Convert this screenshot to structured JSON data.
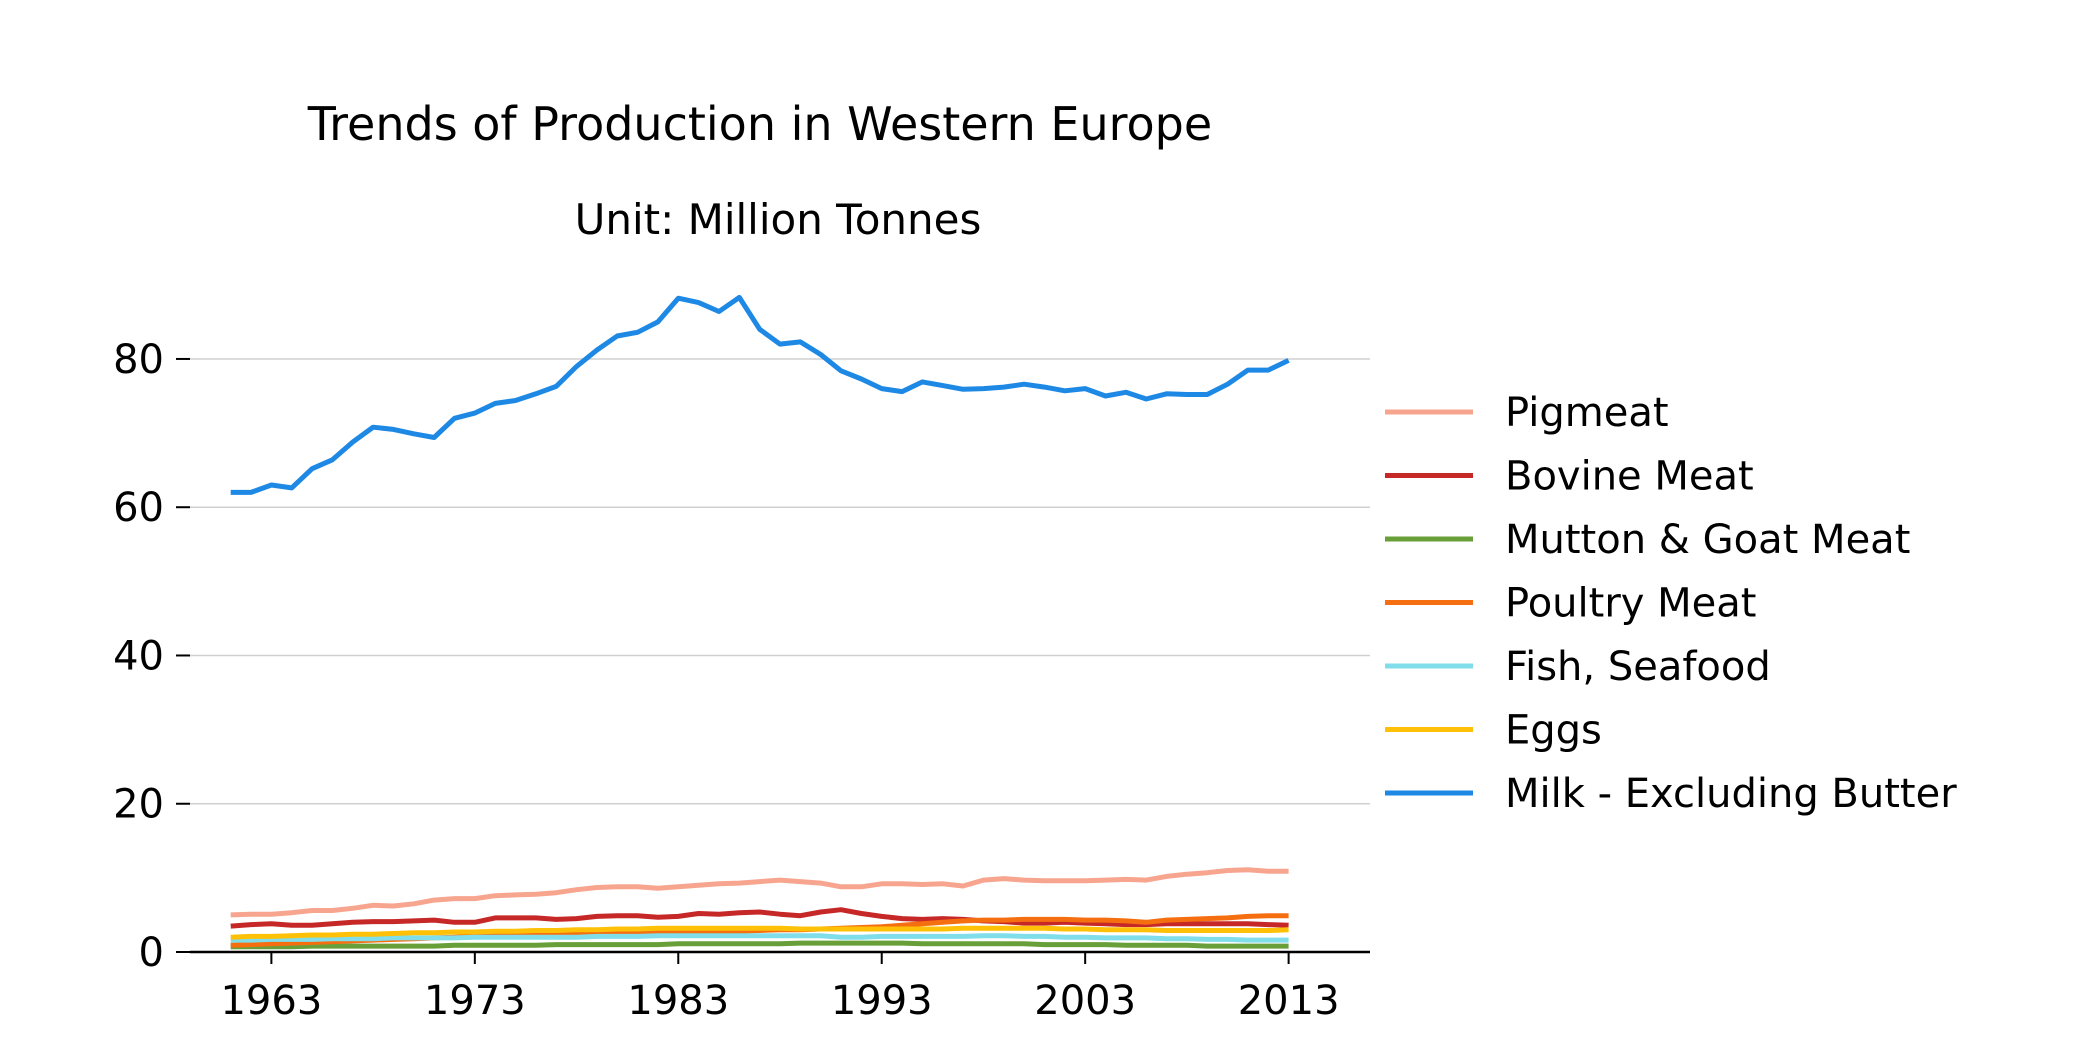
{
  "chart_data": {
    "type": "line",
    "title": "Trends of Production in Western Europe",
    "subtitle": "Unit: Million Tonnes",
    "xlabel": "",
    "ylabel": "",
    "xlim": [
      1959,
      2017
    ],
    "ylim": [
      0,
      92
    ],
    "x_ticks": [
      1963,
      1973,
      1983,
      1993,
      2003,
      2013
    ],
    "y_ticks": [
      0,
      20,
      40,
      60,
      80
    ],
    "grid": "horizontal",
    "legend_position": "right",
    "x": [
      1961,
      1962,
      1963,
      1964,
      1965,
      1966,
      1967,
      1968,
      1969,
      1970,
      1971,
      1972,
      1973,
      1974,
      1975,
      1976,
      1977,
      1978,
      1979,
      1980,
      1981,
      1982,
      1983,
      1984,
      1985,
      1986,
      1987,
      1988,
      1989,
      1990,
      1991,
      1992,
      1993,
      1994,
      1995,
      1996,
      1997,
      1998,
      1999,
      2000,
      2001,
      2002,
      2003,
      2004,
      2005,
      2006,
      2007,
      2008,
      2009,
      2010,
      2011,
      2012,
      2013
    ],
    "series": [
      {
        "name": "Pigmeat",
        "color": "#F7A58F",
        "values": [
          5.0,
          5.1,
          5.1,
          5.3,
          5.6,
          5.6,
          5.9,
          6.3,
          6.2,
          6.5,
          7.0,
          7.2,
          7.2,
          7.6,
          7.7,
          7.8,
          8.0,
          8.4,
          8.7,
          8.8,
          8.8,
          8.6,
          8.8,
          9.0,
          9.2,
          9.3,
          9.5,
          9.7,
          9.5,
          9.3,
          8.8,
          8.8,
          9.2,
          9.2,
          9.1,
          9.2,
          8.9,
          9.7,
          9.9,
          9.7,
          9.6,
          9.6,
          9.6,
          9.7,
          9.8,
          9.7,
          10.2,
          10.5,
          10.7,
          11.0,
          11.1,
          10.9,
          10.9
        ]
      },
      {
        "name": "Bovine Meat",
        "color": "#C62828",
        "values": [
          3.5,
          3.7,
          3.8,
          3.6,
          3.6,
          3.8,
          4.0,
          4.1,
          4.1,
          4.2,
          4.3,
          4.0,
          4.0,
          4.6,
          4.6,
          4.6,
          4.4,
          4.5,
          4.8,
          4.9,
          4.9,
          4.7,
          4.8,
          5.2,
          5.1,
          5.3,
          5.4,
          5.1,
          4.9,
          5.4,
          5.7,
          5.2,
          4.8,
          4.5,
          4.4,
          4.5,
          4.4,
          4.2,
          4.1,
          3.9,
          3.9,
          4.0,
          3.9,
          3.8,
          3.7,
          3.7,
          3.8,
          3.8,
          3.8,
          3.8,
          3.8,
          3.7,
          3.6
        ]
      },
      {
        "name": "Mutton & Goat Meat",
        "color": "#689F38",
        "values": [
          0.7,
          0.7,
          0.7,
          0.7,
          0.8,
          0.8,
          0.8,
          0.8,
          0.8,
          0.8,
          0.8,
          0.9,
          0.9,
          0.9,
          0.9,
          0.9,
          1.0,
          1.0,
          1.0,
          1.0,
          1.0,
          1.0,
          1.1,
          1.1,
          1.1,
          1.1,
          1.1,
          1.1,
          1.2,
          1.2,
          1.2,
          1.2,
          1.2,
          1.2,
          1.1,
          1.1,
          1.1,
          1.1,
          1.1,
          1.1,
          1.0,
          1.0,
          1.0,
          1.0,
          0.9,
          0.9,
          0.9,
          0.9,
          0.8,
          0.8,
          0.8,
          0.8,
          0.8
        ]
      },
      {
        "name": "Poultry Meat",
        "color": "#F56F11",
        "values": [
          0.9,
          1.0,
          1.1,
          1.2,
          1.3,
          1.4,
          1.5,
          1.6,
          1.7,
          1.8,
          1.9,
          2.0,
          2.1,
          2.2,
          2.2,
          2.3,
          2.4,
          2.5,
          2.6,
          2.6,
          2.7,
          2.7,
          2.7,
          2.8,
          2.8,
          2.8,
          2.9,
          3.0,
          3.0,
          3.1,
          3.2,
          3.3,
          3.4,
          3.6,
          3.8,
          4.0,
          4.2,
          4.3,
          4.3,
          4.4,
          4.4,
          4.4,
          4.3,
          4.3,
          4.2,
          4.0,
          4.3,
          4.4,
          4.5,
          4.6,
          4.8,
          4.9,
          4.9
        ]
      },
      {
        "name": "Fish, Seafood",
        "color": "#80DEEA",
        "values": [
          1.6,
          1.6,
          1.7,
          1.7,
          1.7,
          1.8,
          1.8,
          1.8,
          1.9,
          1.9,
          1.9,
          1.9,
          2.0,
          2.0,
          2.0,
          2.0,
          2.0,
          2.0,
          2.1,
          2.1,
          2.1,
          2.2,
          2.2,
          2.2,
          2.2,
          2.2,
          2.2,
          2.2,
          2.2,
          2.2,
          2.0,
          2.0,
          2.1,
          2.1,
          2.1,
          2.1,
          2.1,
          2.2,
          2.2,
          2.1,
          2.1,
          2.0,
          2.0,
          1.9,
          1.9,
          1.9,
          1.8,
          1.8,
          1.7,
          1.7,
          1.6,
          1.6,
          1.6
        ]
      },
      {
        "name": "Eggs",
        "color": "#FFC107",
        "values": [
          2.0,
          2.1,
          2.1,
          2.2,
          2.3,
          2.3,
          2.4,
          2.4,
          2.5,
          2.6,
          2.6,
          2.7,
          2.7,
          2.8,
          2.8,
          2.9,
          2.9,
          3.0,
          3.0,
          3.1,
          3.1,
          3.2,
          3.2,
          3.2,
          3.2,
          3.2,
          3.2,
          3.2,
          3.1,
          3.1,
          3.1,
          3.1,
          3.1,
          3.1,
          3.1,
          3.1,
          3.2,
          3.2,
          3.2,
          3.2,
          3.2,
          3.1,
          3.1,
          3.0,
          3.0,
          3.0,
          2.9,
          2.9,
          2.9,
          2.9,
          2.9,
          2.9,
          3.0
        ]
      },
      {
        "name": "Milk - Excluding Butter",
        "color": "#1E88E5",
        "values": [
          62.0,
          62.0,
          63.0,
          62.6,
          65.2,
          66.4,
          68.8,
          70.8,
          70.5,
          69.9,
          69.4,
          72.0,
          72.7,
          74.0,
          74.4,
          75.3,
          76.3,
          79.0,
          81.2,
          83.1,
          83.6,
          85.0,
          88.2,
          87.6,
          86.4,
          88.3,
          84.0,
          82.0,
          82.3,
          80.6,
          78.4,
          77.3,
          76.0,
          75.6,
          76.9,
          76.4,
          75.9,
          76.0,
          76.2,
          76.6,
          76.2,
          75.7,
          76.0,
          75.0,
          75.5,
          74.6,
          75.3,
          75.2,
          75.2,
          76.6,
          78.5,
          78.5,
          79.8
        ]
      }
    ]
  }
}
